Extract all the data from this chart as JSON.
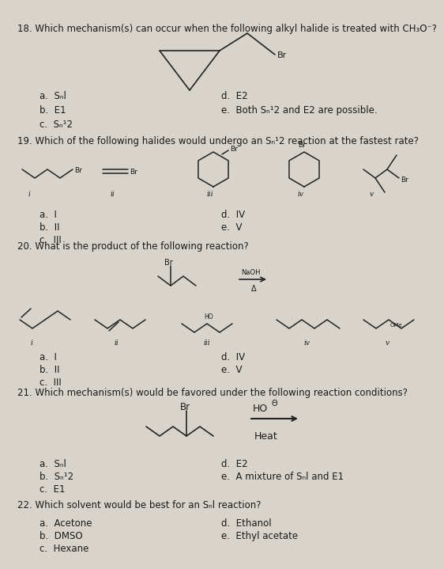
{
  "bg_color": "#d8d4cc",
  "text_color": "#1a1a1a",
  "q18": {
    "text": "18. Which mechanism(s) can occur when the following alkyl halide is treated with CH₃O⁻?",
    "choices_left": [
      "a.  Sₙl",
      "b.  E1",
      "c.  Sₙ¹2"
    ],
    "choices_right": [
      "d.  E2",
      "e.  Both Sₙ¹2 and E2 are possible."
    ]
  },
  "q19": {
    "text": "19. Which of the following halides would undergo an Sₙ¹2 reaction at the fastest rate?",
    "choices_left": [
      "a.  I",
      "b.  II",
      "c.  III"
    ],
    "choices_right": [
      "d.  IV",
      "e.  V"
    ]
  },
  "q20": {
    "text": "20. What is the product of the following reaction?",
    "choices_left": [
      "a.  I",
      "b.  II",
      "c.  III"
    ],
    "choices_right": [
      "d.  IV",
      "e.  V"
    ]
  },
  "q21": {
    "text": "21. Which mechanism(s) would be favored under the following reaction conditions?",
    "choices_left": [
      "a.  Sₙl",
      "b.  Sₙ¹2",
      "c.  E1"
    ],
    "choices_right": [
      "d.  E2",
      "e.  A mixture of Sₙl and E1"
    ]
  },
  "q22": {
    "text": "22. Which solvent would be best for an Sₙl reaction?",
    "choices_left": [
      "a.  Acetone",
      "b.  DMSO",
      "c.  Hexane"
    ],
    "choices_right": [
      "d.  Ethanol",
      "e.  Ethyl acetate"
    ]
  }
}
